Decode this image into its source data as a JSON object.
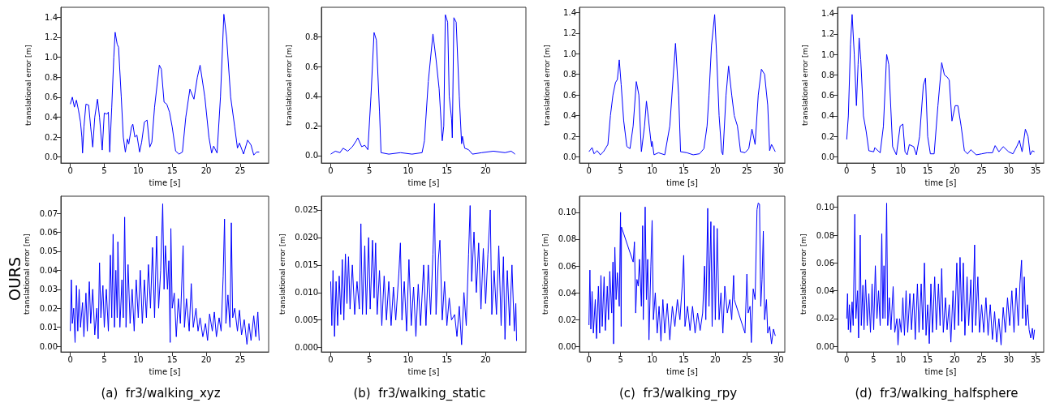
{
  "chart_data": [
    {
      "type": "line",
      "xlabel": "time [s]",
      "ylabel": "translational error [m]",
      "color": "#0000ff",
      "xlim": [
        -1.39,
        29.19
      ],
      "ylim": [
        -0.06,
        1.5
      ],
      "xticks": [
        0,
        5,
        10,
        15,
        20,
        25
      ],
      "yticks": [
        {
          "value": 0,
          "label": "0.0"
        },
        {
          "value": 0.2,
          "label": "0.2"
        },
        {
          "value": 0.4,
          "label": "0.4"
        },
        {
          "value": 0.6,
          "label": "0.6"
        },
        {
          "value": 0.8,
          "label": "0.8"
        },
        {
          "value": 1,
          "label": "1.0"
        },
        {
          "value": 1.2,
          "label": "1.2"
        },
        {
          "value": 1.4,
          "label": "1.4"
        }
      ],
      "x": [
        0,
        0.3,
        0.6,
        0.9,
        1.2,
        1.5,
        1.7,
        1.8,
        2.0,
        2.3,
        2.7,
        3.0,
        3.3,
        3.6,
        4.0,
        4.3,
        4.7,
        5.0,
        5.4,
        5.6,
        5.8,
        6.1,
        6.4,
        6.6,
        6.9,
        7.1,
        7.5,
        7.8,
        8.1,
        8.4,
        8.6,
        9.0,
        9.2,
        9.5,
        9.8,
        10.2,
        10.5,
        10.9,
        11.3,
        11.7,
        12.0,
        12.4,
        13.1,
        13.4,
        13.8,
        14.2,
        14.6,
        15.0,
        15.5,
        16.0,
        16.5,
        17.0,
        17.6,
        18.2,
        18.7,
        19.1,
        19.8,
        20.4,
        20.8,
        21.1,
        21.6,
        22.1,
        22.6,
        23.0,
        23.6,
        24.2,
        24.6,
        24.9,
        25.5,
        26.1,
        26.6,
        27.0,
        27.4,
        27.8
      ],
      "values": [
        0.53,
        0.6,
        0.5,
        0.57,
        0.47,
        0.35,
        0.2,
        0.04,
        0.3,
        0.53,
        0.52,
        0.3,
        0.1,
        0.4,
        0.58,
        0.4,
        0.07,
        0.44,
        0.43,
        0.45,
        0.05,
        0.5,
        1.0,
        1.25,
        1.13,
        1.1,
        0.6,
        0.2,
        0.05,
        0.18,
        0.13,
        0.3,
        0.33,
        0.2,
        0.22,
        0.05,
        0.15,
        0.35,
        0.37,
        0.1,
        0.15,
        0.5,
        0.92,
        0.88,
        0.55,
        0.53,
        0.45,
        0.3,
        0.06,
        0.03,
        0.05,
        0.4,
        0.68,
        0.58,
        0.8,
        0.92,
        0.6,
        0.2,
        0.04,
        0.11,
        0.04,
        0.6,
        1.43,
        1.2,
        0.6,
        0.3,
        0.09,
        0.14,
        0.03,
        0.17,
        0.12,
        0.02,
        0.05,
        0.05
      ]
    },
    {
      "type": "line",
      "xlabel": "time [s]",
      "ylabel": "translational error [m]",
      "color": "#0000ff",
      "xlim": [
        -1.2,
        25.2
      ],
      "ylim": [
        -0.05,
        1.0
      ],
      "xticks": [
        0,
        5,
        10,
        15,
        20
      ],
      "yticks": [
        {
          "value": 0,
          "label": "0.0"
        },
        {
          "value": 0.2,
          "label": "0.2"
        },
        {
          "value": 0.4,
          "label": "0.4"
        },
        {
          "value": 0.6,
          "label": "0.6"
        },
        {
          "value": 0.8,
          "label": "0.8"
        }
      ],
      "x": [
        0,
        0.6,
        1.2,
        1.6,
        2.2,
        2.8,
        3.3,
        3.5,
        4.0,
        4.4,
        4.8,
        5.2,
        5.6,
        5.9,
        6.3,
        6.5,
        7.5,
        9.0,
        10.5,
        11.8,
        12.1,
        12.6,
        13.2,
        13.6,
        14.0,
        14.4,
        14.6,
        14.8,
        15.1,
        15.3,
        15.6,
        15.7,
        15.9,
        16.2,
        16.6,
        16.9,
        17.0,
        17.3,
        17.8,
        18.3,
        19.5,
        21.0,
        22.5,
        23.3,
        23.8
      ],
      "values": [
        0.01,
        0.03,
        0.02,
        0.05,
        0.03,
        0.06,
        0.1,
        0.12,
        0.06,
        0.07,
        0.04,
        0.4,
        0.83,
        0.78,
        0.3,
        0.02,
        0.01,
        0.02,
        0.01,
        0.02,
        0.1,
        0.5,
        0.82,
        0.65,
        0.45,
        0.1,
        0.2,
        0.95,
        0.9,
        0.4,
        0.25,
        0.12,
        0.93,
        0.9,
        0.4,
        0.08,
        0.13,
        0.05,
        0.04,
        0.01,
        0.02,
        0.03,
        0.02,
        0.03,
        0.01
      ]
    },
    {
      "type": "line",
      "xlabel": "time [s]",
      "ylabel": "translational error [m]",
      "color": "#0000ff",
      "xlim": [
        -1.5,
        31
      ],
      "ylim": [
        -0.06,
        1.45
      ],
      "xticks": [
        0,
        5,
        10,
        15,
        20,
        25,
        30
      ],
      "yticks": [
        {
          "value": 0,
          "label": "0.0"
        },
        {
          "value": 0.2,
          "label": "0.2"
        },
        {
          "value": 0.4,
          "label": "0.4"
        },
        {
          "value": 0.6,
          "label": "0.6"
        },
        {
          "value": 0.8,
          "label": "0.8"
        },
        {
          "value": 1,
          "label": "1.0"
        },
        {
          "value": 1.2,
          "label": "1.2"
        },
        {
          "value": 1.4,
          "label": "1.4"
        }
      ],
      "x": [
        0,
        0.5,
        0.8,
        1.3,
        1.8,
        2.3,
        3.0,
        3.4,
        3.8,
        4.2,
        4.5,
        4.8,
        5.1,
        5.5,
        6.0,
        6.5,
        7.0,
        7.5,
        7.9,
        8.3,
        8.8,
        9.1,
        9.4,
        9.9,
        10.0,
        10.3,
        11.0,
        12.0,
        12.8,
        13.7,
        14.2,
        14.5,
        15.5,
        16.5,
        17.5,
        18.2,
        18.7,
        19.0,
        19.4,
        19.9,
        20.2,
        20.6,
        21.0,
        21.2,
        21.7,
        22.1,
        22.6,
        23.0,
        23.5,
        24.0,
        24.7,
        25.3,
        25.8,
        26.3,
        26.8,
        27.3,
        27.8,
        28.3,
        28.6,
        28.9,
        29.5
      ],
      "values": [
        0.05,
        0.09,
        0.03,
        0.06,
        0.02,
        0.05,
        0.12,
        0.4,
        0.6,
        0.72,
        0.75,
        0.94,
        0.7,
        0.35,
        0.1,
        0.08,
        0.3,
        0.73,
        0.6,
        0.05,
        0.3,
        0.54,
        0.38,
        0.1,
        0.15,
        0.02,
        0.04,
        0.02,
        0.3,
        1.1,
        0.6,
        0.05,
        0.04,
        0.02,
        0.03,
        0.08,
        0.3,
        0.6,
        1.08,
        1.38,
        1.0,
        0.4,
        0.05,
        0.02,
        0.6,
        0.88,
        0.6,
        0.4,
        0.3,
        0.05,
        0.04,
        0.08,
        0.27,
        0.12,
        0.6,
        0.85,
        0.8,
        0.5,
        0.06,
        0.12,
        0.05
      ]
    },
    {
      "type": "line",
      "xlabel": "time [s]",
      "ylabel": "translational error [m]",
      "color": "#0000ff",
      "xlim": [
        -1.7,
        36.5
      ],
      "ylim": [
        -0.06,
        1.46
      ],
      "xticks": [
        0,
        5,
        10,
        15,
        20,
        25,
        30,
        35
      ],
      "yticks": [
        {
          "value": 0,
          "label": "0.0"
        },
        {
          "value": 0.2,
          "label": "0.2"
        },
        {
          "value": 0.4,
          "label": "0.4"
        },
        {
          "value": 0.6,
          "label": "0.6"
        },
        {
          "value": 0.8,
          "label": "0.8"
        },
        {
          "value": 1,
          "label": "1.0"
        },
        {
          "value": 1.2,
          "label": "1.2"
        },
        {
          "value": 1.4,
          "label": "1.4"
        }
      ],
      "x": [
        0,
        0.3,
        0.7,
        1.0,
        1.4,
        1.8,
        2.1,
        2.3,
        2.6,
        3.1,
        3.6,
        4.1,
        5.0,
        5.2,
        6.2,
        6.8,
        7.4,
        7.8,
        8.5,
        9.2,
        9.9,
        10.4,
        10.8,
        11.2,
        11.6,
        12.4,
        12.9,
        13.5,
        14.2,
        14.6,
        15.0,
        15.5,
        16.2,
        16.9,
        17.6,
        18.1,
        18.6,
        19.0,
        19.5,
        20.1,
        20.6,
        21.2,
        21.8,
        22.4,
        23.0,
        24,
        25,
        26,
        27,
        27.5,
        28.2,
        29.0,
        30.0,
        30.8,
        31.5,
        32.0,
        32.5,
        33.1,
        33.6,
        34.0,
        34.4,
        34.8
      ],
      "values": [
        0.17,
        0.4,
        1.1,
        1.39,
        1.0,
        0.5,
        0.9,
        1.16,
        0.95,
        0.4,
        0.25,
        0.06,
        0.05,
        0.09,
        0.04,
        0.3,
        1.0,
        0.9,
        0.1,
        0.02,
        0.3,
        0.32,
        0.05,
        0.02,
        0.12,
        0.1,
        0.02,
        0.2,
        0.7,
        0.77,
        0.2,
        0.03,
        0.03,
        0.5,
        0.92,
        0.8,
        0.78,
        0.75,
        0.35,
        0.5,
        0.5,
        0.3,
        0.06,
        0.03,
        0.07,
        0.02,
        0.03,
        0.04,
        0.04,
        0.11,
        0.05,
        0.1,
        0.05,
        0.03,
        0.1,
        0.16,
        0.05,
        0.27,
        0.2,
        0.02,
        0.06,
        0.05
      ]
    },
    {
      "type": "line",
      "xlabel": "time [s]",
      "ylabel": "translational error [m]",
      "color": "#0000ff",
      "xlim": [
        -1.39,
        29.19
      ],
      "ylim": [
        -0.003,
        0.079
      ],
      "xticks": [
        0,
        5,
        10,
        15,
        20,
        25
      ],
      "yticks": [
        {
          "value": 0,
          "label": "0.00"
        },
        {
          "value": 0.01,
          "label": "0.01"
        },
        {
          "value": 0.02,
          "label": "0.02"
        },
        {
          "value": 0.03,
          "label": "0.03"
        },
        {
          "value": 0.04,
          "label": "0.04"
        },
        {
          "value": 0.05,
          "label": "0.05"
        },
        {
          "value": 0.06,
          "label": "0.06"
        },
        {
          "value": 0.07,
          "label": "0.07"
        }
      ],
      "annotations": [
        "(a)  fr3/walking_xyz",
        "OURS"
      ],
      "x": [
        0,
        0.15,
        0.3,
        0.5,
        0.7,
        0.9,
        1.1,
        1.3,
        1.5,
        1.8,
        2.0,
        2.3,
        2.5,
        2.8,
        3.0,
        3.3,
        3.6,
        3.9,
        4.1,
        4.3,
        4.5,
        4.8,
        5.0,
        5.3,
        5.6,
        5.9,
        6.1,
        6.3,
        6.5,
        6.7,
        6.9,
        7.0,
        7.3,
        7.6,
        7.8,
        8.0,
        8.2,
        8.5,
        8.8,
        9.1,
        9.4,
        9.7,
        10.0,
        10.3,
        10.6,
        10.9,
        11.2,
        11.5,
        11.8,
        12.1,
        12.4,
        12.7,
        13.0,
        13.3,
        13.6,
        13.8,
        14.0,
        14.3,
        14.5,
        14.7,
        14.8,
        15.0,
        15.3,
        15.6,
        15.9,
        16.2,
        16.6,
        16.8,
        17.1,
        17.5,
        17.8,
        18.1,
        18.5,
        18.8,
        19.1,
        19.5,
        19.9,
        20.2,
        20.5,
        20.9,
        21.2,
        21.5,
        21.9,
        22.2,
        22.5,
        22.7,
        22.9,
        23.2,
        23.5,
        23.7,
        23.9,
        24.2,
        24.6,
        24.9,
        25.2,
        25.6,
        26.0,
        26.3,
        26.6,
        27.0,
        27.3,
        27.6,
        27.8
      ],
      "values": [
        0.008,
        0.035,
        0.012,
        0.02,
        0.002,
        0.032,
        0.008,
        0.03,
        0.01,
        0.023,
        0.005,
        0.028,
        0.008,
        0.034,
        0.012,
        0.03,
        0.006,
        0.02,
        0.004,
        0.044,
        0.015,
        0.032,
        0.01,
        0.03,
        0.008,
        0.048,
        0.015,
        0.059,
        0.01,
        0.04,
        0.015,
        0.055,
        0.01,
        0.035,
        0.015,
        0.068,
        0.01,
        0.043,
        0.012,
        0.03,
        0.008,
        0.035,
        0.015,
        0.04,
        0.012,
        0.035,
        0.015,
        0.043,
        0.02,
        0.052,
        0.015,
        0.058,
        0.02,
        0.04,
        0.075,
        0.03,
        0.053,
        0.03,
        0.045,
        0.002,
        0.062,
        0.02,
        0.028,
        0.005,
        0.025,
        0.012,
        0.053,
        0.01,
        0.025,
        0.008,
        0.033,
        0.01,
        0.02,
        0.008,
        0.015,
        0.005,
        0.012,
        0.003,
        0.017,
        0.008,
        0.018,
        0.005,
        0.015,
        0.008,
        0.037,
        0.067,
        0.012,
        0.027,
        0.01,
        0.065,
        0.015,
        0.02,
        0.008,
        0.019,
        0.006,
        0.014,
        0.001,
        0.012,
        0.003,
        0.016,
        0.005,
        0.018,
        0.003
      ]
    },
    {
      "type": "line",
      "xlabel": "time [s]",
      "ylabel": "translational error [m]",
      "color": "#0000ff",
      "xlim": [
        -1.2,
        25.2
      ],
      "ylim": [
        -0.0008,
        0.0275
      ],
      "xticks": [
        0,
        5,
        10,
        15,
        20
      ],
      "yticks": [
        {
          "value": 0,
          "label": "0.000"
        },
        {
          "value": 0.005,
          "label": "0.005"
        },
        {
          "value": 0.01,
          "label": "0.010"
        },
        {
          "value": 0.015,
          "label": "0.015"
        },
        {
          "value": 0.02,
          "label": "0.020"
        },
        {
          "value": 0.025,
          "label": "0.025"
        }
      ],
      "annotations": [
        "(b)  fr3/walking_static"
      ],
      "x": [
        0,
        0.15,
        0.3,
        0.5,
        0.7,
        0.9,
        1.1,
        1.3,
        1.5,
        1.7,
        1.9,
        2.1,
        2.3,
        2.5,
        2.8,
        3.1,
        3.4,
        3.7,
        3.9,
        4.1,
        4.4,
        4.6,
        4.9,
        5.1,
        5.4,
        5.6,
        5.8,
        6.0,
        6.3,
        6.6,
        6.9,
        7.2,
        7.5,
        7.8,
        8.1,
        8.4,
        8.8,
        9.0,
        9.2,
        9.5,
        9.8,
        10.1,
        10.4,
        10.7,
        11.0,
        11.3,
        11.6,
        12.0,
        12.3,
        12.6,
        12.9,
        13.2,
        13.4,
        13.6,
        13.9,
        14.1,
        14.4,
        14.7,
        15.0,
        15.3,
        15.6,
        16.0,
        16.3,
        16.6,
        16.9,
        17.2,
        17.5,
        17.8,
        18.0,
        18.2,
        18.5,
        18.8,
        19.1,
        19.4,
        19.7,
        20.0,
        20.3,
        20.6,
        20.8,
        21.1,
        21.4,
        21.7,
        22.0,
        22.3,
        22.5,
        22.8,
        23.1,
        23.4,
        23.7,
        23.9,
        24.0
      ],
      "values": [
        0.012,
        0.004,
        0.014,
        0.002,
        0.012,
        0.004,
        0.013,
        0.006,
        0.016,
        0.005,
        0.017,
        0.008,
        0.0165,
        0.007,
        0.015,
        0.006,
        0.012,
        0.007,
        0.0225,
        0.006,
        0.0185,
        0.006,
        0.02,
        0.007,
        0.0195,
        0.009,
        0.019,
        0.006,
        0.014,
        0.004,
        0.013,
        0.005,
        0.012,
        0.004,
        0.011,
        0.005,
        0.0135,
        0.019,
        0.005,
        0.012,
        0.003,
        0.016,
        0.004,
        0.011,
        0.002,
        0.0115,
        0.004,
        0.015,
        0.004,
        0.015,
        0.006,
        0.017,
        0.0262,
        0.006,
        0.016,
        0.0195,
        0.005,
        0.012,
        0.004,
        0.009,
        0.005,
        0.006,
        0.002,
        0.0075,
        0.0005,
        0.01,
        0.004,
        0.017,
        0.0258,
        0.012,
        0.021,
        0.01,
        0.019,
        0.007,
        0.018,
        0.008,
        0.017,
        0.025,
        0.006,
        0.014,
        0.006,
        0.0185,
        0.004,
        0.0165,
        0.0015,
        0.014,
        0.004,
        0.015,
        0.003,
        0.008,
        0.0012
      ]
    },
    {
      "type": "line",
      "xlabel": "time [s]",
      "ylabel": "translational error [m]",
      "color": "#0000ff",
      "xlim": [
        -1.5,
        31
      ],
      "ylim": [
        -0.004,
        0.112
      ],
      "xticks": [
        0,
        5,
        10,
        15,
        20,
        25,
        30
      ],
      "yticks": [
        {
          "value": 0,
          "label": "0.00"
        },
        {
          "value": 0.02,
          "label": "0.02"
        },
        {
          "value": 0.04,
          "label": "0.04"
        },
        {
          "value": 0.06,
          "label": "0.06"
        },
        {
          "value": 0.08,
          "label": "0.08"
        },
        {
          "value": 0.1,
          "label": "0.10"
        }
      ],
      "annotations": [
        "(c)  fr3/walking_rpy"
      ],
      "x": [
        0,
        0.15,
        0.3,
        0.5,
        0.7,
        1.0,
        1.2,
        1.5,
        1.7,
        1.9,
        2.1,
        2.4,
        2.6,
        2.9,
        3.1,
        3.3,
        3.6,
        3.8,
        3.9,
        4.1,
        4.3,
        4.5,
        4.8,
        5.0,
        5.1,
        5.15,
        7.0,
        7.2,
        7.4,
        7.6,
        7.8,
        8.0,
        8.3,
        8.5,
        8.6,
        8.9,
        9.1,
        9.3,
        9.5,
        9.8,
        10.0,
        10.2,
        10.5,
        10.8,
        11.1,
        11.4,
        11.7,
        12.0,
        12.4,
        12.8,
        13.2,
        13.6,
        14.0,
        14.4,
        14.8,
        15.0,
        15.2,
        15.6,
        16.0,
        16.4,
        16.8,
        17.2,
        17.6,
        18.0,
        18.3,
        18.5,
        18.8,
        19.0,
        19.3,
        19.5,
        19.8,
        20.0,
        20.3,
        20.6,
        20.9,
        21.2,
        21.5,
        21.9,
        22.3,
        22.6,
        22.9,
        23.0,
        24.7,
        25.0,
        25.2,
        25.5,
        25.7,
        26.0,
        26.3,
        26.6,
        26.8,
        27.0,
        27.2,
        27.4,
        27.6,
        27.8,
        28.1,
        28.3,
        28.6,
        28.9,
        29.2,
        29.5
      ],
      "values": [
        0.016,
        0.057,
        0.013,
        0.041,
        0.01,
        0.035,
        0.006,
        0.045,
        0.01,
        0.053,
        0.015,
        0.052,
        0.012,
        0.045,
        0.02,
        0.056,
        0.025,
        0.063,
        0.002,
        0.074,
        0.035,
        0.055,
        0.03,
        0.1,
        0.015,
        0.089,
        0.063,
        0.078,
        0.025,
        0.05,
        0.045,
        0.065,
        0.03,
        0.09,
        0.02,
        0.104,
        0.035,
        0.065,
        0.005,
        0.06,
        0.094,
        0.02,
        0.04,
        0.01,
        0.03,
        0.004,
        0.035,
        0.01,
        0.032,
        0.005,
        0.03,
        0.015,
        0.035,
        0.02,
        0.048,
        0.068,
        0.015,
        0.03,
        0.012,
        0.03,
        0.01,
        0.025,
        0.012,
        0.025,
        0.06,
        0.02,
        0.103,
        0.03,
        0.093,
        0.015,
        0.09,
        0.02,
        0.088,
        0.02,
        0.04,
        0.01,
        0.045,
        0.025,
        0.035,
        0.02,
        0.053,
        0.035,
        0.01,
        0.054,
        0.025,
        0.03,
        0.003,
        0.043,
        0.035,
        0.102,
        0.107,
        0.106,
        0.03,
        0.05,
        0.086,
        0.02,
        0.035,
        0.01,
        0.015,
        0.002,
        0.013,
        0.008
      ]
    },
    {
      "type": "line",
      "xlabel": "time [s]",
      "ylabel": "translational error [m]",
      "color": "#0000ff",
      "xlim": [
        -1.7,
        36.5
      ],
      "ylim": [
        -0.004,
        0.108
      ],
      "xticks": [
        0,
        5,
        10,
        15,
        20,
        25,
        30,
        35
      ],
      "yticks": [
        {
          "value": 0,
          "label": "0.00"
        },
        {
          "value": 0.02,
          "label": "0.02"
        },
        {
          "value": 0.04,
          "label": "0.04"
        },
        {
          "value": 0.06,
          "label": "0.06"
        },
        {
          "value": 0.08,
          "label": "0.08"
        },
        {
          "value": 0.1,
          "label": "0.10"
        }
      ],
      "annotations": [
        "(d)  fr3/walking_halfsphere"
      ],
      "x": [
        0,
        0.15,
        0.3,
        0.5,
        0.7,
        1.0,
        1.2,
        1.5,
        1.7,
        2.0,
        2.2,
        2.5,
        2.7,
        3.0,
        3.2,
        3.5,
        3.8,
        4.1,
        4.4,
        4.7,
        5.0,
        5.3,
        5.6,
        5.9,
        6.2,
        6.5,
        6.7,
        6.9,
        7.1,
        7.4,
        7.6,
        7.9,
        8.2,
        8.6,
        8.9,
        9.3,
        9.5,
        9.8,
        10.1,
        10.4,
        10.7,
        11.0,
        11.3,
        11.7,
        12.0,
        12.4,
        12.7,
        13.1,
        13.4,
        13.8,
        14.1,
        14.4,
        14.7,
        15.0,
        15.3,
        15.6,
        15.9,
        16.3,
        16.6,
        17.0,
        17.3,
        17.6,
        17.9,
        18.3,
        18.6,
        19.0,
        19.3,
        19.7,
        20.0,
        20.4,
        20.7,
        21.0,
        21.3,
        21.6,
        21.9,
        22.3,
        22.6,
        23.0,
        23.3,
        23.7,
        23.9,
        24.3,
        24.6,
        25.0,
        25.4,
        25.8,
        26.2,
        26.6,
        27.0,
        27.4,
        27.8,
        28.2,
        28.6,
        29.0,
        29.4,
        29.8,
        30.2,
        30.6,
        31.0,
        31.4,
        31.8,
        32.1,
        32.4,
        32.6,
        32.9,
        33.2,
        33.5,
        33.8,
        34.1,
        34.4,
        34.6,
        34.8
      ],
      "values": [
        0.02,
        0.038,
        0.012,
        0.03,
        0.01,
        0.032,
        0.015,
        0.095,
        0.02,
        0.04,
        0.006,
        0.08,
        0.015,
        0.044,
        0.012,
        0.048,
        0.015,
        0.038,
        0.01,
        0.045,
        0.012,
        0.058,
        0.02,
        0.04,
        0.015,
        0.081,
        0.02,
        0.058,
        0.02,
        0.103,
        0.015,
        0.035,
        0.012,
        0.043,
        0.01,
        0.02,
        0.001,
        0.02,
        0.01,
        0.035,
        0.008,
        0.04,
        0.01,
        0.038,
        0.012,
        0.038,
        0.005,
        0.045,
        0.01,
        0.045,
        0.012,
        0.06,
        0.008,
        0.03,
        0.002,
        0.045,
        0.01,
        0.05,
        0.012,
        0.045,
        0.015,
        0.056,
        0.01,
        0.035,
        0.012,
        0.03,
        0.003,
        0.04,
        0.012,
        0.06,
        0.015,
        0.064,
        0.018,
        0.06,
        0.008,
        0.05,
        0.015,
        0.048,
        0.01,
        0.073,
        0.015,
        0.05,
        0.01,
        0.03,
        0.01,
        0.035,
        0.008,
        0.03,
        0.005,
        0.025,
        0.003,
        0.02,
        0.001,
        0.028,
        0.01,
        0.035,
        0.015,
        0.04,
        0.01,
        0.042,
        0.015,
        0.045,
        0.062,
        0.02,
        0.05,
        0.015,
        0.03,
        0.012,
        0.006,
        0.013,
        0.005,
        0.012
      ]
    }
  ]
}
